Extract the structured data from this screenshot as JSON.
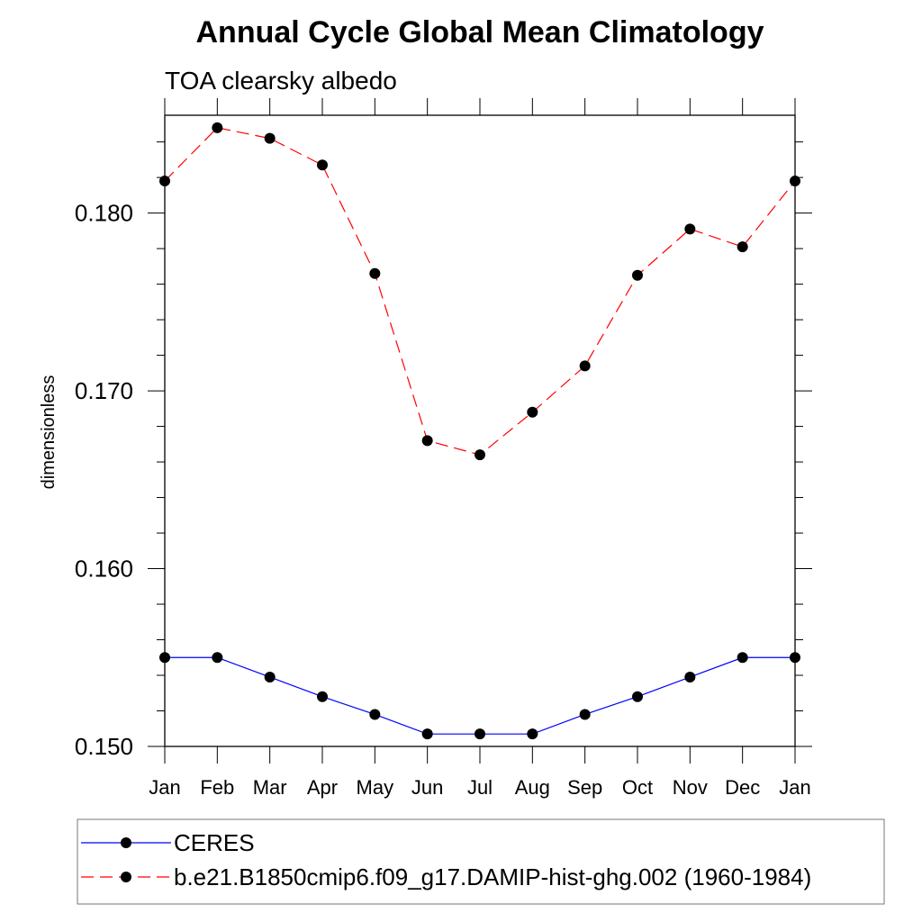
{
  "chart_data": {
    "type": "line",
    "title": "Annual Cycle Global Mean Climatology",
    "subtitle": "TOA clearsky albedo",
    "xlabel": "",
    "ylabel": "dimensionless",
    "categories": [
      "Jan",
      "Feb",
      "Mar",
      "Apr",
      "May",
      "Jun",
      "Jul",
      "Aug",
      "Sep",
      "Oct",
      "Nov",
      "Dec",
      "Jan"
    ],
    "ylim": [
      0.15,
      0.1855
    ],
    "y_ticks": [
      "0.150",
      "0.160",
      "0.170",
      "0.180"
    ],
    "y_minor_step": 0.002,
    "grid": false,
    "legend_position": "bottom",
    "series": [
      {
        "name": "CERES",
        "color": "#0000ff",
        "line_style": "solid",
        "marker": "filled-circle",
        "values": [
          0.155,
          0.155,
          0.1539,
          0.1528,
          0.1518,
          0.1507,
          0.1507,
          0.1507,
          0.1518,
          0.1528,
          0.1539,
          0.155,
          0.155
        ]
      },
      {
        "name": "b.e21.B1850cmip6.f09_g17.DAMIP-hist-ghg.002 (1960-1984)",
        "color": "#ff0000",
        "line_style": "dashed",
        "marker": "filled-circle",
        "values": [
          0.1818,
          0.1848,
          0.1842,
          0.1827,
          0.1766,
          0.1672,
          0.1664,
          0.1688,
          0.1714,
          0.1765,
          0.1791,
          0.1781,
          0.1818
        ]
      }
    ]
  }
}
